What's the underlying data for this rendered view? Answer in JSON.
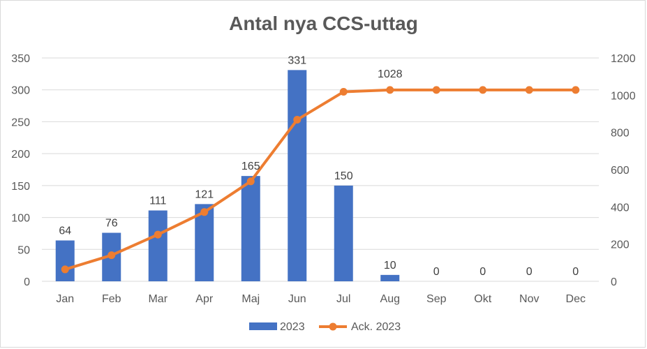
{
  "chart_data": {
    "type": "bar",
    "title": "Antal nya CCS-uttag",
    "categories": [
      "Jan",
      "Feb",
      "Mar",
      "Apr",
      "Maj",
      "Jun",
      "Jul",
      "Aug",
      "Sep",
      "Okt",
      "Nov",
      "Dec"
    ],
    "series": [
      {
        "name": "2023",
        "type": "bar",
        "axis": "left",
        "color": "#4472c4",
        "values": [
          64,
          76,
          111,
          121,
          165,
          331,
          150,
          10,
          0,
          0,
          0,
          0
        ],
        "labels": [
          "64",
          "76",
          "111",
          "121",
          "165",
          "331",
          "150",
          "10",
          "0",
          "0",
          "0",
          "0"
        ]
      },
      {
        "name": "Ack. 2023",
        "type": "line",
        "axis": "right",
        "color": "#ed7d31",
        "values": [
          64,
          140,
          251,
          372,
          537,
          868,
          1018,
          1028,
          1028,
          1028,
          1028,
          1028
        ],
        "labels": [
          "1028"
        ],
        "label_index": 7
      }
    ],
    "y_left": {
      "min": 0,
      "max": 350,
      "ticks": [
        "0",
        "50",
        "100",
        "150",
        "200",
        "250",
        "300",
        "350"
      ]
    },
    "y_right": {
      "min": 0,
      "max": 1200,
      "ticks": [
        "0",
        "200",
        "400",
        "600",
        "800",
        "1000",
        "1200"
      ]
    },
    "grid": true,
    "legend_position": "bottom"
  }
}
